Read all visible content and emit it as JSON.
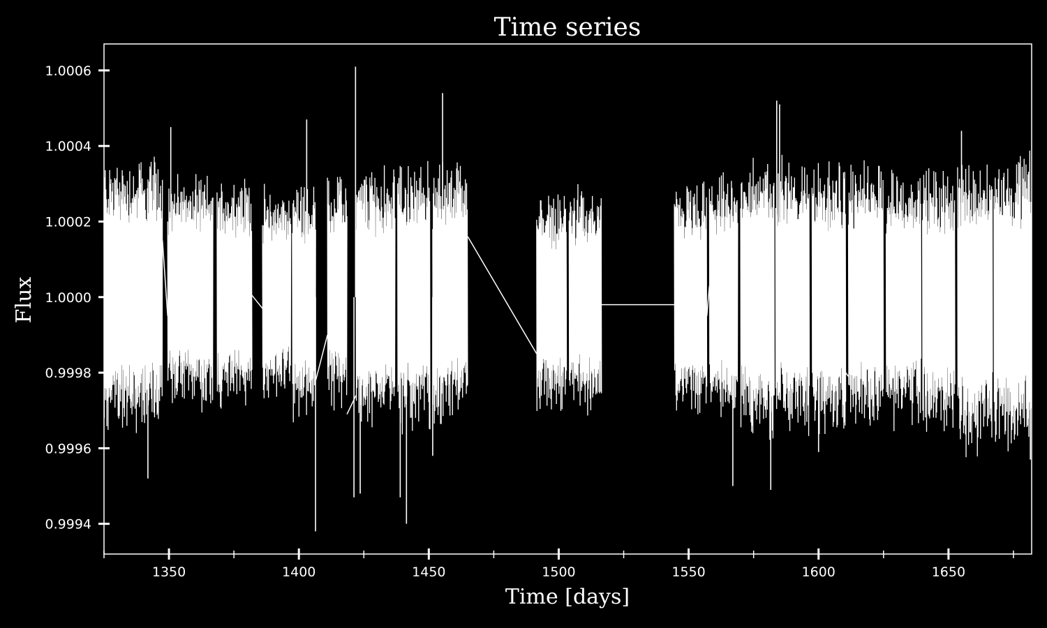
{
  "chart_data": {
    "type": "line",
    "title": "Time series",
    "xlabel": "Time [days]",
    "ylabel": "Flux",
    "xlim": [
      1325,
      1682
    ],
    "ylim": [
      0.99932,
      1.00067
    ],
    "x_ticks": [
      1350,
      1400,
      1450,
      1500,
      1550,
      1600,
      1650
    ],
    "x_tick_labels": [
      "1350",
      "1400",
      "1450",
      "1500",
      "1550",
      "1600",
      "1650"
    ],
    "y_ticks": [
      0.9994,
      0.9996,
      0.9998,
      1.0,
      1.0002,
      1.0004,
      1.0006
    ],
    "y_tick_labels": [
      "0.9994",
      "0.9996",
      "0.9998",
      "1.0000",
      "1.0002",
      "1.0004",
      "1.0006"
    ],
    "grid": false,
    "colors": {
      "background": "#000000",
      "foreground": "#ffffff",
      "line": "#ffffff"
    },
    "segments": [
      {
        "x_start": 1325.0,
        "x_end": 1347.5,
        "y_low": 0.99967,
        "y_high": 1.00035
      },
      {
        "x_start": 1349.5,
        "x_end": 1367.0,
        "y_low": 0.99973,
        "y_high": 1.0003
      },
      {
        "x_start": 1368.5,
        "x_end": 1382.0,
        "y_low": 0.99972,
        "y_high": 1.0003
      },
      {
        "x_start": 1386.0,
        "x_end": 1397.0,
        "y_low": 0.99975,
        "y_high": 1.00027
      },
      {
        "x_start": 1397.5,
        "x_end": 1406.5,
        "y_low": 0.9997,
        "y_high": 1.00028
      },
      {
        "x_start": 1411.0,
        "x_end": 1418.5,
        "y_low": 0.99972,
        "y_high": 1.0003
      },
      {
        "x_start": 1422.0,
        "x_end": 1437.0,
        "y_low": 0.99968,
        "y_high": 1.00032
      },
      {
        "x_start": 1438.0,
        "x_end": 1450.5,
        "y_low": 0.99967,
        "y_high": 1.00033
      },
      {
        "x_start": 1451.5,
        "x_end": 1465.0,
        "y_low": 0.99968,
        "y_high": 1.00034
      },
      {
        "x_start": 1491.5,
        "x_end": 1503.0,
        "y_low": 0.99972,
        "y_high": 1.00026
      },
      {
        "x_start": 1504.0,
        "x_end": 1516.5,
        "y_low": 0.99972,
        "y_high": 1.00027
      },
      {
        "x_start": 1544.5,
        "x_end": 1557.0,
        "y_low": 0.99972,
        "y_high": 1.00028
      },
      {
        "x_start": 1558.0,
        "x_end": 1569.0,
        "y_low": 0.9997,
        "y_high": 1.0003
      },
      {
        "x_start": 1570.0,
        "x_end": 1583.0,
        "y_low": 0.99965,
        "y_high": 1.00035
      },
      {
        "x_start": 1583.5,
        "x_end": 1596.5,
        "y_low": 0.99966,
        "y_high": 1.00035
      },
      {
        "x_start": 1597.5,
        "x_end": 1610.5,
        "y_low": 0.99966,
        "y_high": 1.00033
      },
      {
        "x_start": 1611.5,
        "x_end": 1625.0,
        "y_low": 0.99967,
        "y_high": 1.00033
      },
      {
        "x_start": 1626.0,
        "x_end": 1639.5,
        "y_low": 0.99968,
        "y_high": 1.00032
      },
      {
        "x_start": 1640.0,
        "x_end": 1652.5,
        "y_low": 0.99966,
        "y_high": 1.00032
      },
      {
        "x_start": 1653.5,
        "x_end": 1667.0,
        "y_low": 0.99962,
        "y_high": 1.00035
      },
      {
        "x_start": 1667.5,
        "x_end": 1682.0,
        "y_low": 0.99962,
        "y_high": 1.00036
      }
    ],
    "spikes": [
      {
        "x": 1341.9,
        "y": 0.99952
      },
      {
        "x": 1350.7,
        "y": 1.00045
      },
      {
        "x": 1403.0,
        "y": 1.00047
      },
      {
        "x": 1406.4,
        "y": 0.99938
      },
      {
        "x": 1421.8,
        "y": 1.00061
      },
      {
        "x": 1421.2,
        "y": 0.99947
      },
      {
        "x": 1423.6,
        "y": 0.99948
      },
      {
        "x": 1439.0,
        "y": 0.99947
      },
      {
        "x": 1441.4,
        "y": 0.9994
      },
      {
        "x": 1451.5,
        "y": 0.99958
      },
      {
        "x": 1455.3,
        "y": 1.00054
      },
      {
        "x": 1567.0,
        "y": 0.9995
      },
      {
        "x": 1581.6,
        "y": 0.99949
      },
      {
        "x": 1583.9,
        "y": 1.00052
      },
      {
        "x": 1585.0,
        "y": 1.00051
      },
      {
        "x": 1600.0,
        "y": 0.99959
      },
      {
        "x": 1655.0,
        "y": 1.00044
      },
      {
        "x": 1681.5,
        "y": 0.99957
      }
    ],
    "connectors": [
      [
        {
          "x": 1347.5,
          "y": 1.00015
        },
        {
          "x": 1349.5,
          "y": 0.99995
        }
      ],
      [
        {
          "x": 1379.0,
          "y": 1.00003
        },
        {
          "x": 1386.0,
          "y": 0.99997
        }
      ],
      [
        {
          "x": 1406.5,
          "y": 0.99978
        },
        {
          "x": 1411.0,
          "y": 0.9999
        }
      ],
      [
        {
          "x": 1418.5,
          "y": 0.99969
        },
        {
          "x": 1422.0,
          "y": 0.99974
        }
      ],
      [
        {
          "x": 1465.0,
          "y": 1.00016
        },
        {
          "x": 1491.5,
          "y": 0.99985
        }
      ],
      [
        {
          "x": 1516.5,
          "y": 0.99998
        },
        {
          "x": 1544.5,
          "y": 0.99998
        }
      ],
      [
        {
          "x": 1557.0,
          "y": 0.99995
        },
        {
          "x": 1558.0,
          "y": 1.00003
        }
      ],
      [
        {
          "x": 1605.0,
          "y": 0.99985
        },
        {
          "x": 1611.5,
          "y": 0.99979
        }
      ]
    ]
  }
}
